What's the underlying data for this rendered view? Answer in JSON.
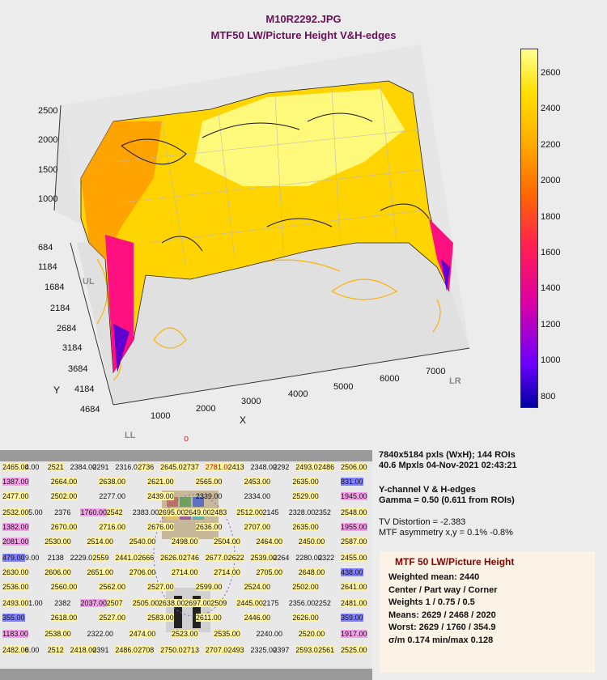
{
  "title": "M10R2292.JPG",
  "subtitle": "MTF50 LW/Picture Height   V&H-edges",
  "chart_data": {
    "type": "surface",
    "z_axis": {
      "ticks": [
        "2500",
        "2000",
        "1500",
        "1000"
      ]
    },
    "y_axis": {
      "label": "Y",
      "ticks": [
        "684",
        "1184",
        "1684",
        "2184",
        "2684",
        "3184",
        "3684",
        "4184",
        "4684"
      ]
    },
    "x_axis": {
      "label": "X",
      "ticks": [
        "1000",
        "2000",
        "3000",
        "4000",
        "5000",
        "6000",
        "7000"
      ]
    },
    "corners": {
      "ul": "UL",
      "lr": "LR",
      "ll": "LL"
    },
    "colorbar": {
      "range": [
        750,
        2750
      ],
      "ticks": [
        "2600",
        "2400",
        "2200",
        "2000",
        "1800",
        "1600",
        "1400",
        "1200",
        "1000",
        "800"
      ]
    },
    "roi_map": {
      "marker": "o",
      "rows": [
        [
          "2465.00",
          "4.00",
          "2521",
          "2384.00",
          "2291",
          "2316.00",
          "2736",
          "2645.00",
          "2737",
          "2781.00",
          "2413",
          "2348.00",
          "2292",
          "2493.00",
          "2486",
          "2506.00"
        ],
        [
          "1387.00",
          "2664.00",
          "2638.00",
          "2621.00",
          "2565.00",
          "2453.00",
          "2635.00",
          "831.00"
        ],
        [
          "2477.00",
          "2502.00",
          "2277.00",
          "2439.00",
          "2339.00",
          "2334.00",
          "2529.00",
          "1945.00"
        ],
        [
          "2532.00",
          "5.00",
          "2376",
          "1760.00",
          "2542",
          "2383.00",
          "2695.00",
          "2649.00",
          "2483",
          "2512.00",
          "2145",
          "2328.00",
          "2352",
          "2548.00"
        ],
        [
          "1382.00",
          "2670.00",
          "2716.00",
          "2676.00",
          "2636.00",
          "2707.00",
          "2635.00",
          "1955.00"
        ],
        [
          "2081.00",
          "2530.00",
          "2514.00",
          "2540.00",
          "2498.00",
          "2504.00",
          "2464.00",
          "2450.00",
          "2587.00"
        ],
        [
          "479.00",
          "9.00",
          "2138",
          "2229.00",
          "2559",
          "2441.00",
          "2666",
          "2626.00",
          "2746",
          "2677.00",
          "2622",
          "2539.00",
          "2264",
          "2280.00",
          "2322",
          "2455.00"
        ],
        [
          "2630.00",
          "2606.00",
          "2651.00",
          "2706.00",
          "2714.00",
          "2714.00",
          "2705.00",
          "2648.00",
          "438.00"
        ],
        [
          "2536.00",
          "2560.00",
          "2562.00",
          "2527.00",
          "2599.00",
          "2524.00",
          "2502.00",
          "2641.00"
        ],
        [
          "2493.00",
          "1.00",
          "2382",
          "2037.00",
          "2507",
          "2505.00",
          "2638.00",
          "2697.00",
          "2509",
          "2445.00",
          "2175",
          "2356.00",
          "2252",
          "2481.00"
        ],
        [
          "355.00",
          "2618.00",
          "2527.00",
          "2583.00",
          "2611.00",
          "2446.00",
          "2626.00",
          "359.00"
        ],
        [
          "1183.00",
          "2538.00",
          "2322.00",
          "2474.00",
          "2523.00",
          "2535.00",
          "2240.00",
          "2520.00",
          "1917.00"
        ],
        [
          "2482.00",
          "6.00",
          "2512",
          "2418.00",
          "2391",
          "2486.00",
          "2708",
          "2750.00",
          "2713",
          "2707.00",
          "2493",
          "2325.00",
          "2397",
          "2593.00",
          "2561",
          "2525.00"
        ]
      ]
    }
  },
  "info": {
    "line1": "7840x5184 pxls (WxH);    144 ROIs",
    "line2": "40.6 Mpxls   04-Nov-2021 02:43:21",
    "line3": "Y-channel   V & H-edges",
    "line4": "Gamma = 0.50  (0.611 from ROIs)",
    "line5": "TV Distortion = -2.383",
    "line6": "MTF asymmetry x,y = 0.1%  -0.8%"
  },
  "summary": {
    "head": "MTF 50 LW/Picture Height",
    "weighted_mean": "Weighted mean: 2440",
    "zones": "Center / Part way / Corner",
    "weights": "Weights  1 / 0.75 / 0.5",
    "means": "Means:     2629 / 2468 / 2020",
    "worst": "Worst:      2629 / 1760 / 354.9",
    "sigma": "σ/m  0.174   min/max  0.128"
  }
}
